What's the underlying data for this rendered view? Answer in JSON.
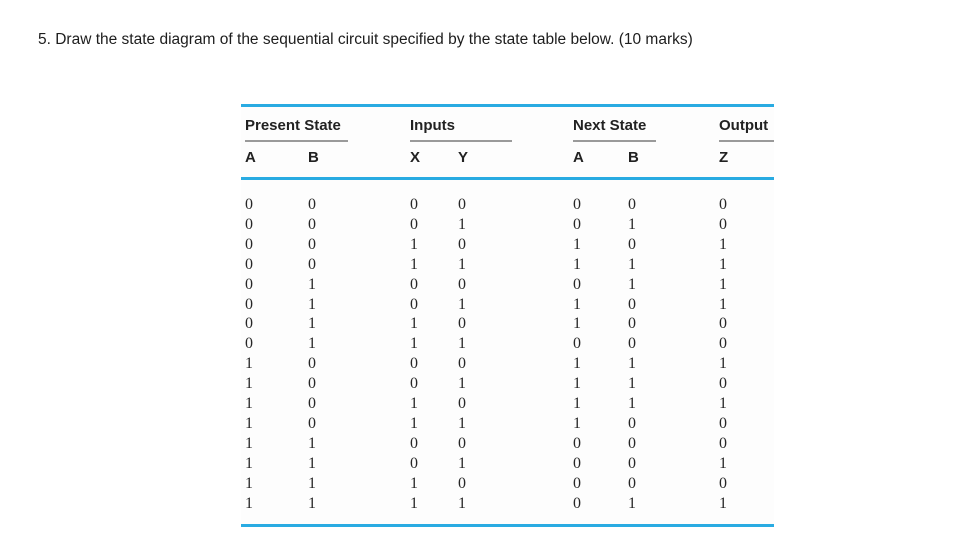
{
  "page": {
    "question": "5. Draw the state diagram of the sequential circuit specified by the state table below. (10 marks)"
  },
  "table": {
    "accent_color": "#29abe2",
    "underline_color": "#9a9a9a",
    "col_groups": [
      {
        "label": "Present State",
        "columns": [
          "A",
          "B"
        ]
      },
      {
        "label": "Inputs",
        "columns": [
          "X",
          "Y"
        ]
      },
      {
        "label": "Next State",
        "columns": [
          "A",
          "B"
        ]
      },
      {
        "label": "Output",
        "columns": [
          "Z"
        ]
      }
    ],
    "rows": [
      [
        "0",
        "0",
        "0",
        "0",
        "0",
        "0",
        "0"
      ],
      [
        "0",
        "0",
        "0",
        "1",
        "0",
        "1",
        "0"
      ],
      [
        "0",
        "0",
        "1",
        "0",
        "1",
        "0",
        "1"
      ],
      [
        "0",
        "0",
        "1",
        "1",
        "1",
        "1",
        "1"
      ],
      [
        "0",
        "1",
        "0",
        "0",
        "0",
        "1",
        "1"
      ],
      [
        "0",
        "1",
        "0",
        "1",
        "1",
        "0",
        "1"
      ],
      [
        "0",
        "1",
        "1",
        "0",
        "1",
        "0",
        "0"
      ],
      [
        "0",
        "1",
        "1",
        "1",
        "0",
        "0",
        "0"
      ],
      [
        "1",
        "0",
        "0",
        "0",
        "1",
        "1",
        "1"
      ],
      [
        "1",
        "0",
        "0",
        "1",
        "1",
        "1",
        "0"
      ],
      [
        "1",
        "0",
        "1",
        "0",
        "1",
        "1",
        "1"
      ],
      [
        "1",
        "0",
        "1",
        "1",
        "1",
        "0",
        "0"
      ],
      [
        "1",
        "1",
        "0",
        "0",
        "0",
        "0",
        "0"
      ],
      [
        "1",
        "1",
        "0",
        "1",
        "0",
        "0",
        "1"
      ],
      [
        "1",
        "1",
        "1",
        "0",
        "0",
        "0",
        "0"
      ],
      [
        "1",
        "1",
        "1",
        "1",
        "0",
        "1",
        "1"
      ]
    ]
  }
}
